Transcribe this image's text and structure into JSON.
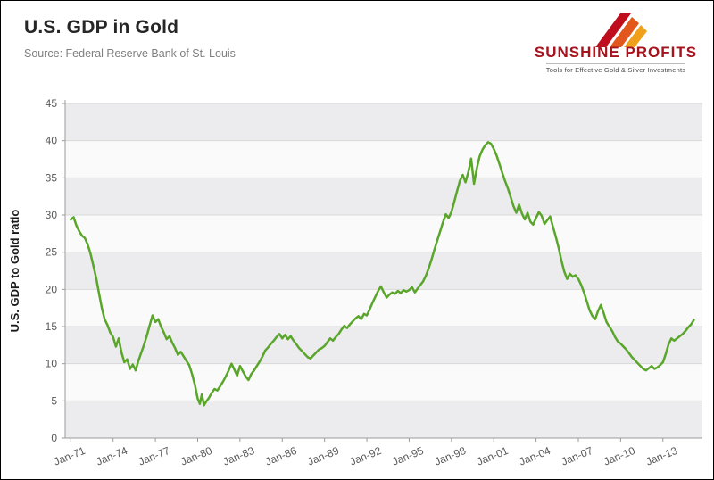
{
  "header": {
    "title": "U.S. GDP in Gold",
    "source": "Source: Federal Reserve Bank of St. Louis"
  },
  "logo": {
    "name": "SUNSHINE PROFITS",
    "tagline": "Tools for Effective Gold & Silver Investments",
    "brand_red": "#c00d1e",
    "brand_orange": "#e2571b",
    "brand_gold": "#f0a11b"
  },
  "chart_data": {
    "type": "line",
    "title": "U.S. GDP in Gold",
    "xlabel": "",
    "ylabel": "U.S. GDP to Gold ratio",
    "ylim": [
      0,
      45
    ],
    "ytick_step": 5,
    "xlim": [
      1970.6,
      2015.8
    ],
    "grid": true,
    "legend": "none",
    "band_dark": "#ecebee",
    "band_light": "#fafafa",
    "grid_color": "#d9d9d9",
    "axis_color": "#9b9b9b",
    "line_color": "#5aa62b",
    "x_tick_years": [
      1971,
      1974,
      1977,
      1980,
      1983,
      1986,
      1989,
      1992,
      1995,
      1998,
      2001,
      2004,
      2007,
      2010,
      2013
    ],
    "x_tick_labels": [
      "Jan-71",
      "Jan-74",
      "Jan-77",
      "Jan-80",
      "Jan-83",
      "Jan-86",
      "Jan-89",
      "Jan-92",
      "Jan-95",
      "Jan-98",
      "Jan-01",
      "Jan-04",
      "Jan-07",
      "Jan-10",
      "Jan-13"
    ],
    "series": [
      {
        "name": "U.S. GDP to Gold ratio",
        "points": [
          [
            1971.0,
            29.4
          ],
          [
            1971.2,
            29.7
          ],
          [
            1971.4,
            28.6
          ],
          [
            1971.6,
            27.8
          ],
          [
            1971.8,
            27.2
          ],
          [
            1972.0,
            26.9
          ],
          [
            1972.2,
            26.0
          ],
          [
            1972.4,
            24.8
          ],
          [
            1972.6,
            23.2
          ],
          [
            1972.8,
            21.5
          ],
          [
            1973.0,
            19.5
          ],
          [
            1973.2,
            17.5
          ],
          [
            1973.4,
            16.0
          ],
          [
            1973.6,
            15.2
          ],
          [
            1973.8,
            14.2
          ],
          [
            1974.0,
            13.6
          ],
          [
            1974.2,
            12.3
          ],
          [
            1974.4,
            13.4
          ],
          [
            1974.6,
            11.5
          ],
          [
            1974.8,
            10.2
          ],
          [
            1975.0,
            10.6
          ],
          [
            1975.2,
            9.3
          ],
          [
            1975.4,
            9.9
          ],
          [
            1975.6,
            9.1
          ],
          [
            1975.8,
            10.4
          ],
          [
            1976.0,
            11.5
          ],
          [
            1976.2,
            12.6
          ],
          [
            1976.4,
            13.8
          ],
          [
            1976.6,
            15.2
          ],
          [
            1976.8,
            16.5
          ],
          [
            1977.0,
            15.6
          ],
          [
            1977.2,
            16.0
          ],
          [
            1977.4,
            15.0
          ],
          [
            1977.6,
            14.2
          ],
          [
            1977.8,
            13.3
          ],
          [
            1978.0,
            13.7
          ],
          [
            1978.2,
            12.8
          ],
          [
            1978.4,
            12.1
          ],
          [
            1978.6,
            11.2
          ],
          [
            1978.8,
            11.6
          ],
          [
            1979.0,
            11.0
          ],
          [
            1979.2,
            10.4
          ],
          [
            1979.4,
            9.8
          ],
          [
            1979.6,
            8.6
          ],
          [
            1979.8,
            7.2
          ],
          [
            1980.0,
            5.3
          ],
          [
            1980.15,
            4.6
          ],
          [
            1980.3,
            5.9
          ],
          [
            1980.45,
            4.4
          ],
          [
            1980.6,
            4.9
          ],
          [
            1980.8,
            5.4
          ],
          [
            1981.0,
            6.1
          ],
          [
            1981.2,
            6.6
          ],
          [
            1981.4,
            6.4
          ],
          [
            1981.6,
            7.0
          ],
          [
            1981.8,
            7.6
          ],
          [
            1982.0,
            8.3
          ],
          [
            1982.2,
            9.1
          ],
          [
            1982.4,
            10.0
          ],
          [
            1982.6,
            9.2
          ],
          [
            1982.8,
            8.4
          ],
          [
            1983.0,
            9.7
          ],
          [
            1983.2,
            9.0
          ],
          [
            1983.4,
            8.3
          ],
          [
            1983.6,
            7.8
          ],
          [
            1983.8,
            8.6
          ],
          [
            1984.0,
            9.1
          ],
          [
            1984.2,
            9.7
          ],
          [
            1984.4,
            10.3
          ],
          [
            1984.6,
            11.0
          ],
          [
            1984.8,
            11.8
          ],
          [
            1985.0,
            12.2
          ],
          [
            1985.2,
            12.7
          ],
          [
            1985.4,
            13.1
          ],
          [
            1985.6,
            13.6
          ],
          [
            1985.8,
            14.0
          ],
          [
            1986.0,
            13.4
          ],
          [
            1986.2,
            13.9
          ],
          [
            1986.4,
            13.3
          ],
          [
            1986.6,
            13.7
          ],
          [
            1986.8,
            13.1
          ],
          [
            1987.0,
            12.6
          ],
          [
            1987.2,
            12.1
          ],
          [
            1987.4,
            11.7
          ],
          [
            1987.6,
            11.3
          ],
          [
            1987.8,
            10.9
          ],
          [
            1988.0,
            10.7
          ],
          [
            1988.2,
            11.1
          ],
          [
            1988.4,
            11.5
          ],
          [
            1988.6,
            11.9
          ],
          [
            1988.8,
            12.1
          ],
          [
            1989.0,
            12.4
          ],
          [
            1989.2,
            12.9
          ],
          [
            1989.4,
            13.4
          ],
          [
            1989.6,
            13.1
          ],
          [
            1989.8,
            13.6
          ],
          [
            1990.0,
            14.0
          ],
          [
            1990.2,
            14.6
          ],
          [
            1990.4,
            15.1
          ],
          [
            1990.6,
            14.8
          ],
          [
            1990.8,
            15.3
          ],
          [
            1991.0,
            15.7
          ],
          [
            1991.2,
            16.1
          ],
          [
            1991.4,
            16.4
          ],
          [
            1991.6,
            16.0
          ],
          [
            1991.8,
            16.7
          ],
          [
            1992.0,
            16.5
          ],
          [
            1992.2,
            17.3
          ],
          [
            1992.4,
            18.2
          ],
          [
            1992.6,
            19.0
          ],
          [
            1992.8,
            19.8
          ],
          [
            1993.0,
            20.4
          ],
          [
            1993.2,
            19.6
          ],
          [
            1993.4,
            18.9
          ],
          [
            1993.6,
            19.3
          ],
          [
            1993.8,
            19.6
          ],
          [
            1994.0,
            19.4
          ],
          [
            1994.2,
            19.8
          ],
          [
            1994.4,
            19.5
          ],
          [
            1994.6,
            19.9
          ],
          [
            1994.8,
            19.7
          ],
          [
            1995.0,
            19.9
          ],
          [
            1995.2,
            20.3
          ],
          [
            1995.4,
            19.6
          ],
          [
            1995.6,
            20.1
          ],
          [
            1995.8,
            20.6
          ],
          [
            1996.0,
            21.1
          ],
          [
            1996.2,
            21.9
          ],
          [
            1996.4,
            22.9
          ],
          [
            1996.6,
            24.1
          ],
          [
            1996.8,
            25.4
          ],
          [
            1997.0,
            26.6
          ],
          [
            1997.2,
            27.8
          ],
          [
            1997.4,
            29.0
          ],
          [
            1997.6,
            30.1
          ],
          [
            1997.8,
            29.6
          ],
          [
            1998.0,
            30.4
          ],
          [
            1998.2,
            31.8
          ],
          [
            1998.4,
            33.2
          ],
          [
            1998.6,
            34.6
          ],
          [
            1998.8,
            35.4
          ],
          [
            1999.0,
            34.4
          ],
          [
            1999.2,
            35.8
          ],
          [
            1999.4,
            37.6
          ],
          [
            1999.6,
            34.2
          ],
          [
            1999.8,
            36.3
          ],
          [
            2000.0,
            37.9
          ],
          [
            2000.2,
            38.8
          ],
          [
            2000.4,
            39.4
          ],
          [
            2000.6,
            39.8
          ],
          [
            2000.8,
            39.6
          ],
          [
            2001.0,
            38.9
          ],
          [
            2001.2,
            38.0
          ],
          [
            2001.4,
            36.9
          ],
          [
            2001.6,
            35.7
          ],
          [
            2001.8,
            34.6
          ],
          [
            2002.0,
            33.6
          ],
          [
            2002.2,
            32.4
          ],
          [
            2002.4,
            31.2
          ],
          [
            2002.6,
            30.3
          ],
          [
            2002.8,
            31.4
          ],
          [
            2003.0,
            30.2
          ],
          [
            2003.2,
            29.4
          ],
          [
            2003.4,
            30.3
          ],
          [
            2003.6,
            29.1
          ],
          [
            2003.8,
            28.7
          ],
          [
            2004.0,
            29.6
          ],
          [
            2004.2,
            30.4
          ],
          [
            2004.4,
            29.9
          ],
          [
            2004.6,
            28.8
          ],
          [
            2004.8,
            29.3
          ],
          [
            2005.0,
            29.8
          ],
          [
            2005.2,
            28.4
          ],
          [
            2005.4,
            27.1
          ],
          [
            2005.6,
            25.6
          ],
          [
            2005.8,
            23.9
          ],
          [
            2006.0,
            22.4
          ],
          [
            2006.2,
            21.4
          ],
          [
            2006.4,
            22.1
          ],
          [
            2006.6,
            21.7
          ],
          [
            2006.8,
            21.9
          ],
          [
            2007.0,
            21.4
          ],
          [
            2007.2,
            20.6
          ],
          [
            2007.4,
            19.6
          ],
          [
            2007.6,
            18.4
          ],
          [
            2007.8,
            17.2
          ],
          [
            2008.0,
            16.4
          ],
          [
            2008.2,
            16.0
          ],
          [
            2008.4,
            17.1
          ],
          [
            2008.6,
            17.9
          ],
          [
            2008.8,
            16.8
          ],
          [
            2009.0,
            15.6
          ],
          [
            2009.2,
            15.0
          ],
          [
            2009.4,
            14.4
          ],
          [
            2009.6,
            13.6
          ],
          [
            2009.8,
            13.0
          ],
          [
            2010.0,
            12.7
          ],
          [
            2010.2,
            12.3
          ],
          [
            2010.4,
            11.9
          ],
          [
            2010.6,
            11.4
          ],
          [
            2010.8,
            10.9
          ],
          [
            2011.0,
            10.5
          ],
          [
            2011.2,
            10.1
          ],
          [
            2011.4,
            9.7
          ],
          [
            2011.6,
            9.3
          ],
          [
            2011.8,
            9.1
          ],
          [
            2012.0,
            9.4
          ],
          [
            2012.2,
            9.7
          ],
          [
            2012.4,
            9.3
          ],
          [
            2012.6,
            9.5
          ],
          [
            2012.8,
            9.8
          ],
          [
            2013.0,
            10.2
          ],
          [
            2013.2,
            11.3
          ],
          [
            2013.4,
            12.6
          ],
          [
            2013.6,
            13.4
          ],
          [
            2013.8,
            13.1
          ],
          [
            2014.0,
            13.4
          ],
          [
            2014.2,
            13.7
          ],
          [
            2014.4,
            14.0
          ],
          [
            2014.6,
            14.4
          ],
          [
            2014.8,
            14.9
          ],
          [
            2015.0,
            15.3
          ],
          [
            2015.2,
            15.9
          ]
        ]
      }
    ]
  }
}
